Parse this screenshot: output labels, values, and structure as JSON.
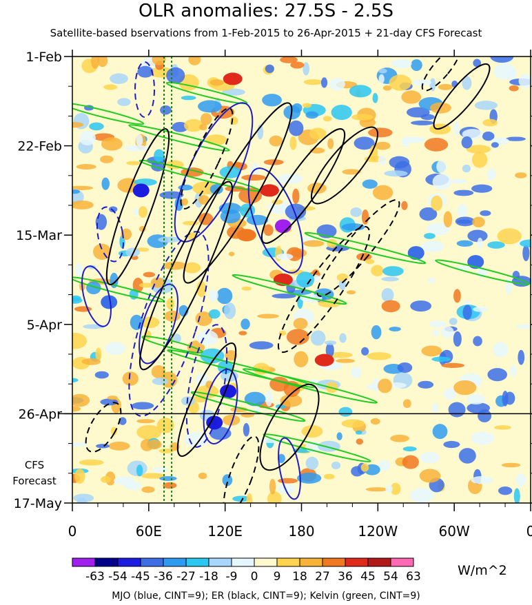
{
  "chart_data": {
    "type": "heatmap",
    "title": "OLR anomalies: 27.5S - 2.5S",
    "subtitle": "Satellite-based bservations from 1-Feb-2015 to 26-Apr-2015 + 21-day CFS Forecast",
    "x_ticks": [
      "0",
      "60E",
      "120E",
      "180",
      "120W",
      "60W",
      "0"
    ],
    "x_tick_lon": [
      0,
      60,
      120,
      180,
      240,
      300,
      360
    ],
    "y_ticks": [
      "1-Feb",
      "22-Feb",
      "15-Mar",
      "5-Apr",
      "26-Apr",
      "17-May"
    ],
    "y_tick_day": [
      0,
      21,
      42,
      63,
      84,
      105
    ],
    "cfs_label": [
      "CFS",
      "Forecast"
    ],
    "forecast_start_day": 84,
    "end_day": 105,
    "colorbar": {
      "labels": [
        "-63",
        "-54",
        "-45",
        "-36",
        "-27",
        "-18",
        "-9",
        "0",
        "9",
        "18",
        "27",
        "36",
        "45",
        "54",
        "63"
      ],
      "colors": [
        "#a020f0",
        "#00008b",
        "#1c1ce0",
        "#3c6ee6",
        "#2f9bf0",
        "#2cc6f2",
        "#a8d6f8",
        "#e6f7ff",
        "#fffacd",
        "#ffd34d",
        "#f8b23a",
        "#f07820",
        "#e02a1c",
        "#b21a1a",
        "#ff69b4"
      ],
      "units": "W/m^2"
    },
    "mjo_reference_lon": [
      72,
      78
    ],
    "footnote": "MJO (blue, CINT=9); ER (black, CINT=9); Kelvin (green, CINT=9)"
  }
}
